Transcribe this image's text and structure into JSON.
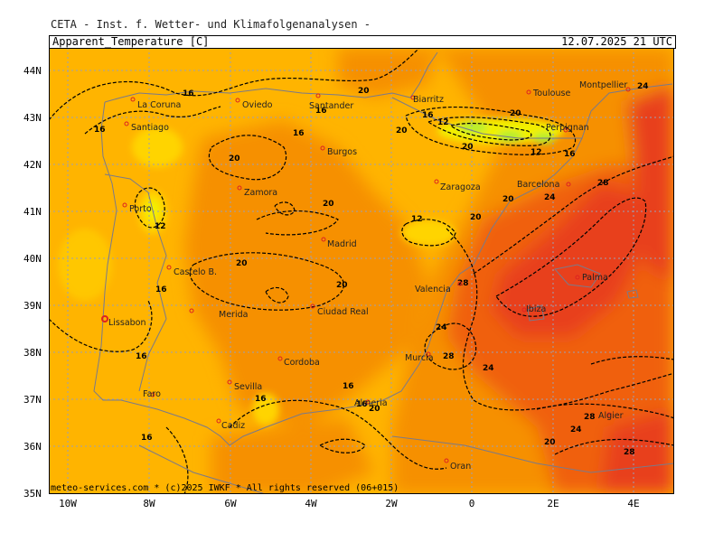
{
  "header": {
    "source": "CETA - Inst. f. Wetter- und Klimafolgenanalysen -",
    "parameter": "Apparent_Temperature [C]",
    "valid_time": "12.07.2025 21 UTC"
  },
  "footer": {
    "credit": "meteo-services.com * (c)2025 IWKF * All rights reserved (06+015)"
  },
  "axes": {
    "lat_labels": [
      "44N",
      "43N",
      "42N",
      "41N",
      "40N",
      "39N",
      "38N",
      "37N",
      "36N",
      "35N"
    ],
    "lon_labels": [
      "10W",
      "8W",
      "6W",
      "4W",
      "2W",
      "0",
      "2E",
      "4E"
    ]
  },
  "cities": [
    {
      "name": "La Coruna"
    },
    {
      "name": "Oviedo"
    },
    {
      "name": "Santander"
    },
    {
      "name": "Biarritz"
    },
    {
      "name": "Toulouse"
    },
    {
      "name": "Montpellier"
    },
    {
      "name": "Santiago"
    },
    {
      "name": "Burgos"
    },
    {
      "name": "Perpignan"
    },
    {
      "name": "Zamora"
    },
    {
      "name": "Zaragoza"
    },
    {
      "name": "Barcelona"
    },
    {
      "name": "Porto"
    },
    {
      "name": "Madrid"
    },
    {
      "name": "Castelo B."
    },
    {
      "name": "Valencia"
    },
    {
      "name": "Palma"
    },
    {
      "name": "Merida"
    },
    {
      "name": "Ciudad Real"
    },
    {
      "name": "Ibiza"
    },
    {
      "name": "Lissabon"
    },
    {
      "name": "Murcia"
    },
    {
      "name": "Cordoba"
    },
    {
      "name": "Sevilla"
    },
    {
      "name": "Almeria"
    },
    {
      "name": "Faro"
    },
    {
      "name": "Cadiz"
    },
    {
      "name": "Algier"
    },
    {
      "name": "Oran"
    }
  ],
  "contour_labels": [
    "16",
    "20",
    "16",
    "12",
    "20",
    "16",
    "20",
    "16",
    "20",
    "12",
    "16",
    "12",
    "16",
    "20",
    "24",
    "28",
    "20",
    "12",
    "20",
    "16",
    "20",
    "16",
    "20",
    "28",
    "24",
    "28",
    "24",
    "16",
    "16",
    "16",
    "20",
    "20",
    "24",
    "24",
    "28",
    "20",
    "28",
    "16"
  ],
  "colors": {
    "t8_12": "#f2f000",
    "t12_16": "#ffd400",
    "t16_20": "#ffb400",
    "t20_24": "#f69000",
    "t24_28": "#f06010",
    "t28_32": "#e8401a",
    "t4_8": "#b0ee30"
  }
}
